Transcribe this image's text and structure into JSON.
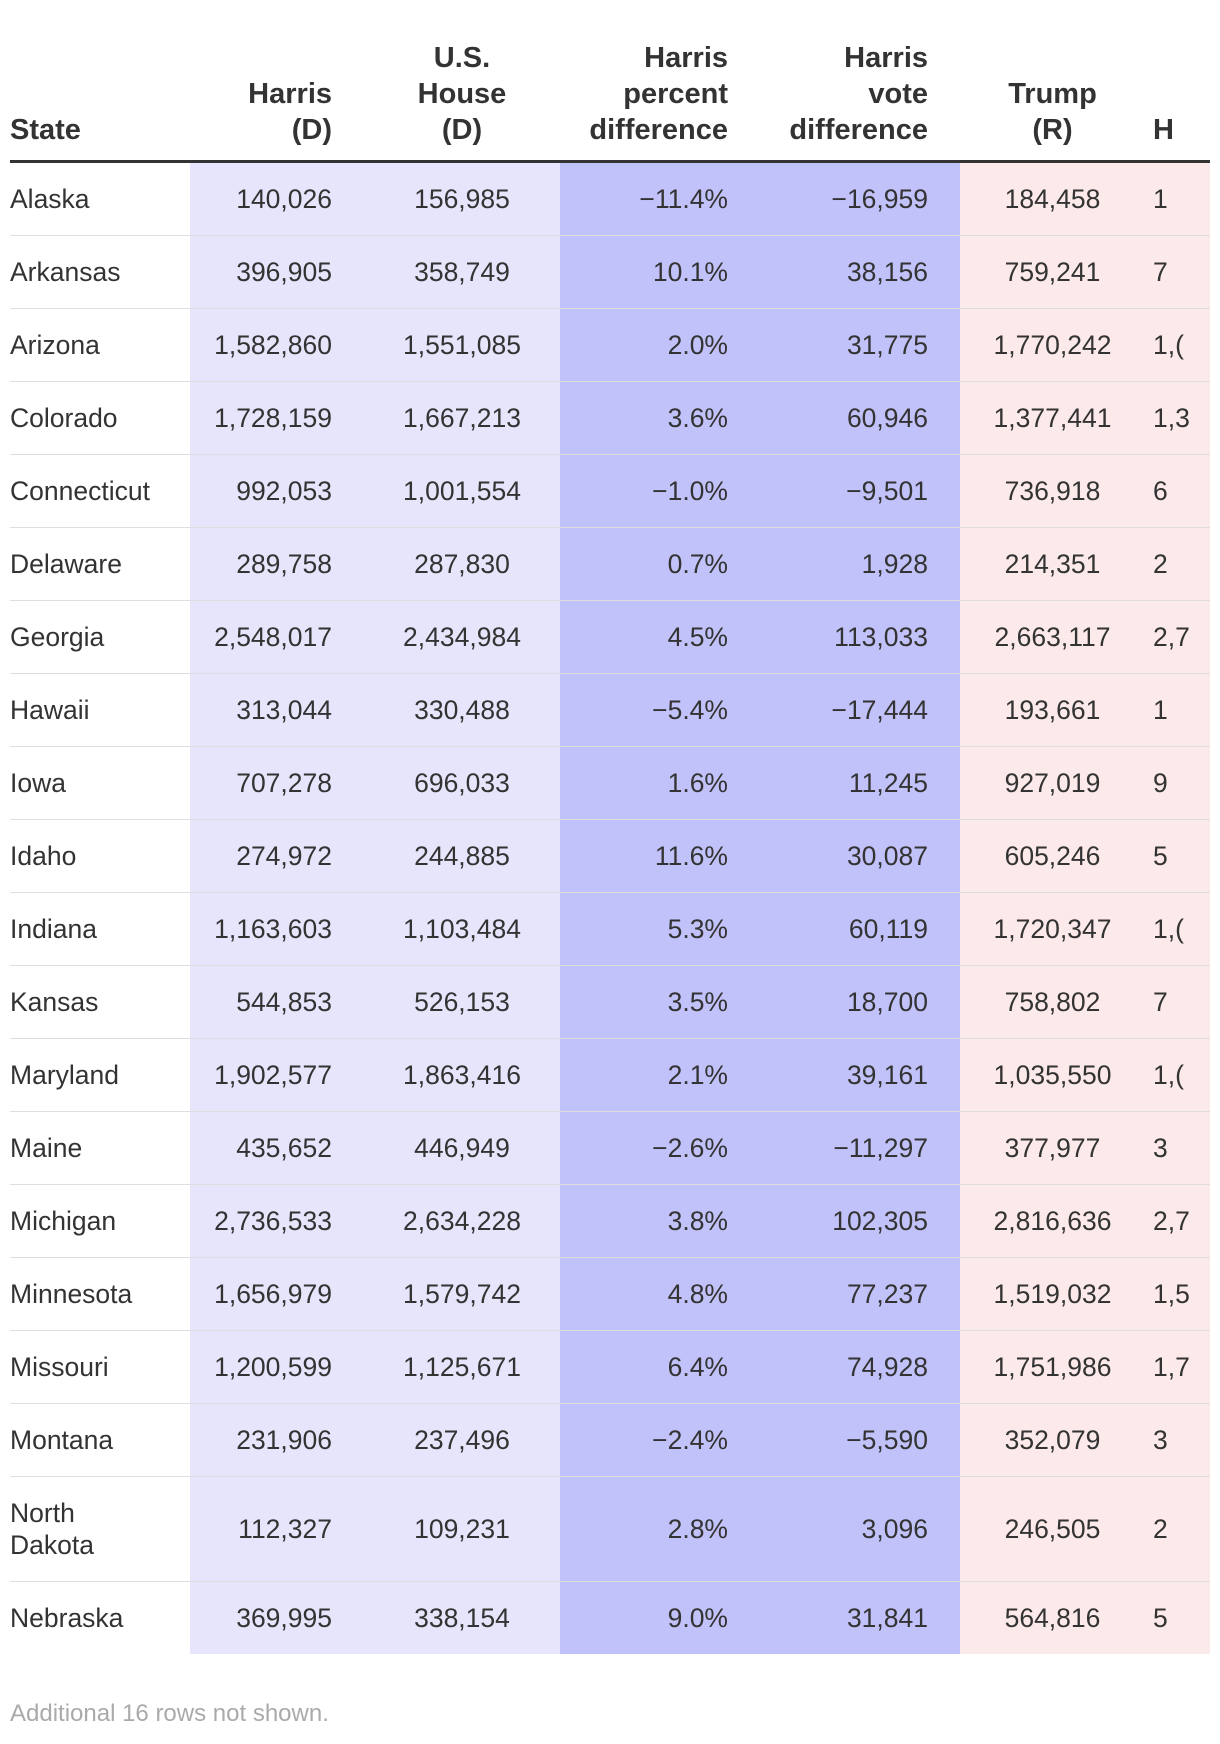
{
  "table": {
    "headers": {
      "state": "State",
      "harris": [
        "Harris",
        "(D)"
      ],
      "house": [
        "U.S.",
        "House",
        "(D)"
      ],
      "pct_diff": [
        "Harris",
        "percent",
        "difference"
      ],
      "vote_diff": [
        "Harris",
        "vote",
        "difference"
      ],
      "trump": [
        "Trump",
        "(R)"
      ],
      "next_cut": "H"
    },
    "rows": [
      {
        "state": "Alaska",
        "harris": "140,026",
        "house": "156,985",
        "pct": "−11.4%",
        "vdiff": "−16,959",
        "trump": "184,458",
        "next": "1"
      },
      {
        "state": "Arkansas",
        "harris": "396,905",
        "house": "358,749",
        "pct": "10.1%",
        "vdiff": "38,156",
        "trump": "759,241",
        "next": "7"
      },
      {
        "state": "Arizona",
        "harris": "1,582,860",
        "house": "1,551,085",
        "pct": "2.0%",
        "vdiff": "31,775",
        "trump": "1,770,242",
        "next": "1,("
      },
      {
        "state": "Colorado",
        "harris": "1,728,159",
        "house": "1,667,213",
        "pct": "3.6%",
        "vdiff": "60,946",
        "trump": "1,377,441",
        "next": "1,3"
      },
      {
        "state": "Connecticut",
        "harris": "992,053",
        "house": "1,001,554",
        "pct": "−1.0%",
        "vdiff": "−9,501",
        "trump": "736,918",
        "next": "6"
      },
      {
        "state": "Delaware",
        "harris": "289,758",
        "house": "287,830",
        "pct": "0.7%",
        "vdiff": "1,928",
        "trump": "214,351",
        "next": "2"
      },
      {
        "state": "Georgia",
        "harris": "2,548,017",
        "house": "2,434,984",
        "pct": "4.5%",
        "vdiff": "113,033",
        "trump": "2,663,117",
        "next": "2,7"
      },
      {
        "state": "Hawaii",
        "harris": "313,044",
        "house": "330,488",
        "pct": "−5.4%",
        "vdiff": "−17,444",
        "trump": "193,661",
        "next": "1"
      },
      {
        "state": "Iowa",
        "harris": "707,278",
        "house": "696,033",
        "pct": "1.6%",
        "vdiff": "11,245",
        "trump": "927,019",
        "next": "9"
      },
      {
        "state": "Idaho",
        "harris": "274,972",
        "house": "244,885",
        "pct": "11.6%",
        "vdiff": "30,087",
        "trump": "605,246",
        "next": "5"
      },
      {
        "state": "Indiana",
        "harris": "1,163,603",
        "house": "1,103,484",
        "pct": "5.3%",
        "vdiff": "60,119",
        "trump": "1,720,347",
        "next": "1,("
      },
      {
        "state": "Kansas",
        "harris": "544,853",
        "house": "526,153",
        "pct": "3.5%",
        "vdiff": "18,700",
        "trump": "758,802",
        "next": "7"
      },
      {
        "state": "Maryland",
        "harris": "1,902,577",
        "house": "1,863,416",
        "pct": "2.1%",
        "vdiff": "39,161",
        "trump": "1,035,550",
        "next": "1,("
      },
      {
        "state": "Maine",
        "harris": "435,652",
        "house": "446,949",
        "pct": "−2.6%",
        "vdiff": "−11,297",
        "trump": "377,977",
        "next": "3"
      },
      {
        "state": "Michigan",
        "harris": "2,736,533",
        "house": "2,634,228",
        "pct": "3.8%",
        "vdiff": "102,305",
        "trump": "2,816,636",
        "next": "2,7"
      },
      {
        "state": "Minnesota",
        "harris": "1,656,979",
        "house": "1,579,742",
        "pct": "4.8%",
        "vdiff": "77,237",
        "trump": "1,519,032",
        "next": "1,5"
      },
      {
        "state": "Missouri",
        "harris": "1,200,599",
        "house": "1,125,671",
        "pct": "6.4%",
        "vdiff": "74,928",
        "trump": "1,751,986",
        "next": "1,7"
      },
      {
        "state": "Montana",
        "harris": "231,906",
        "house": "237,496",
        "pct": "−2.4%",
        "vdiff": "−5,590",
        "trump": "352,079",
        "next": "3"
      },
      {
        "state": "North Dakota",
        "harris": "112,327",
        "house": "109,231",
        "pct": "2.8%",
        "vdiff": "3,096",
        "trump": "246,505",
        "next": "2"
      },
      {
        "state": "Nebraska",
        "harris": "369,995",
        "house": "338,154",
        "pct": "9.0%",
        "vdiff": "31,841",
        "trump": "564,816",
        "next": "5"
      }
    ],
    "footnote": "Additional 16 rows not shown."
  },
  "colors": {
    "harris_bg": "#e6e5fb",
    "diff_bg": "#c2c2fa",
    "trump_bg": "#fce9e9",
    "header_rule": "#333333"
  }
}
